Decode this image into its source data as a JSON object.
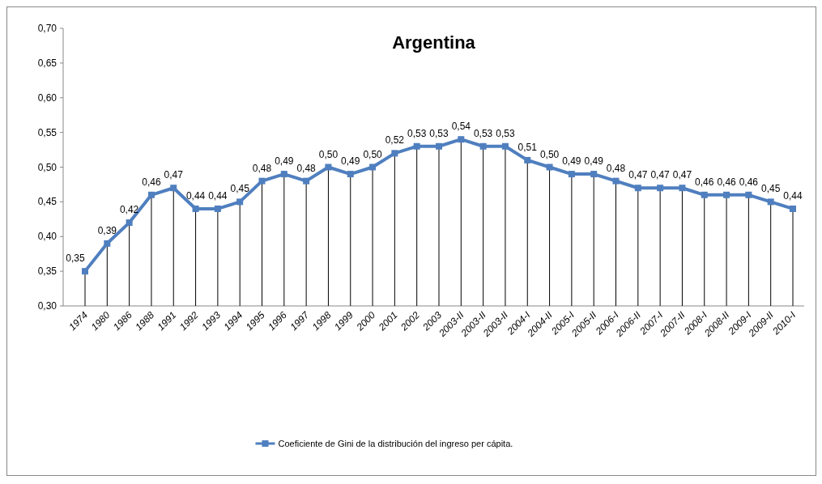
{
  "chart_data": {
    "type": "line",
    "title": "Argentina",
    "categories": [
      "1974",
      "1980",
      "1986",
      "1988",
      "1991",
      "1992",
      "1993",
      "1994",
      "1995",
      "1996",
      "1997",
      "1998",
      "1999",
      "2000",
      "2001",
      "2002",
      "2003",
      "2003-II",
      "2003-II",
      "2003-II",
      "2004-I",
      "2004-II",
      "2005-I",
      "2005-II",
      "2006-I",
      "2006-II",
      "2007-I",
      "2007-II",
      "2008-I",
      "2008-II",
      "2009-I",
      "2009-II",
      "2010-I"
    ],
    "series": [
      {
        "name": "Coeficiente de Gini de la distribución del ingreso per cápita.",
        "color": "#4f7fbf",
        "values": [
          0.35,
          0.39,
          0.42,
          0.46,
          0.47,
          0.44,
          0.44,
          0.45,
          0.48,
          0.49,
          0.48,
          0.5,
          0.49,
          0.5,
          0.52,
          0.53,
          0.53,
          0.54,
          0.53,
          0.53,
          0.51,
          0.5,
          0.49,
          0.49,
          0.48,
          0.47,
          0.47,
          0.47,
          0.46,
          0.46,
          0.46,
          0.45,
          0.44
        ],
        "value_labels": [
          "0,35",
          "0,39",
          "0,42",
          "0,46",
          "0,47",
          "0,44",
          "0,44",
          "0,45",
          "0,48",
          "0,49",
          "0,48",
          "0,50",
          "0,49",
          "0,50",
          "0,52",
          "0,53",
          "0,53",
          "0,54",
          "0,53",
          "0,53",
          "0,51",
          "0,50",
          "0,49",
          "0,49",
          "0,48",
          "0,47",
          "0,47",
          "0,47",
          "0,46",
          "0,46",
          "0,46",
          "0,45",
          "0,44"
        ]
      }
    ],
    "ylim": [
      0.3,
      0.7
    ],
    "yticks": [
      {
        "value": 0.3,
        "label": "0,30"
      },
      {
        "value": 0.35,
        "label": "0,35"
      },
      {
        "value": 0.4,
        "label": "0,40"
      },
      {
        "value": 0.45,
        "label": "0,45"
      },
      {
        "value": 0.5,
        "label": "0,50"
      },
      {
        "value": 0.55,
        "label": "0,55"
      },
      {
        "value": 0.6,
        "label": "0,60"
      },
      {
        "value": 0.65,
        "label": "0,65"
      },
      {
        "value": 0.7,
        "label": "0,70"
      }
    ],
    "marker": "square",
    "line_style": "solid",
    "legend": "bottom",
    "grid": false
  }
}
